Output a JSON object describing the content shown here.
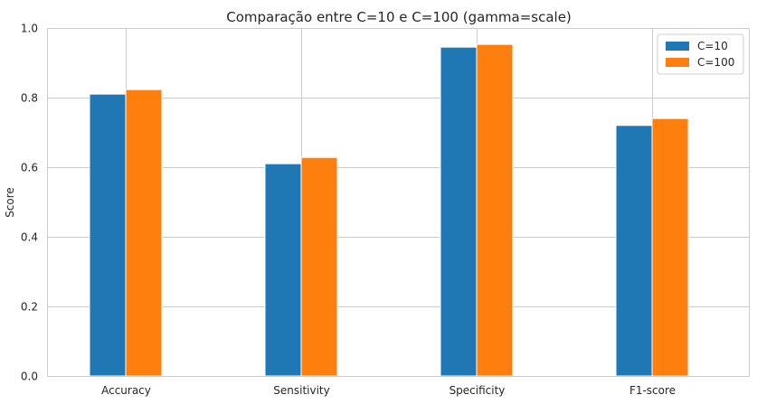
{
  "chart_data": {
    "type": "bar",
    "title": "Comparação entre C=10 e C=100 (gamma=scale)",
    "xlabel": "",
    "ylabel": "Score",
    "categories": [
      "Accuracy",
      "Sensitivity",
      "Specificity",
      "F1-score"
    ],
    "series": [
      {
        "name": "C=10",
        "values": [
          0.81,
          0.61,
          0.945,
          0.72
        ],
        "color": "#1f77b4"
      },
      {
        "name": "C=100",
        "values": [
          0.823,
          0.628,
          0.953,
          0.74
        ],
        "color": "#ff7f0e"
      }
    ],
    "ylim": [
      0,
      1.0
    ],
    "yticks": [
      "0.0",
      "0.2",
      "0.4",
      "0.6",
      "0.8",
      "1.0"
    ],
    "grid": true,
    "legend_position": "top-right"
  }
}
